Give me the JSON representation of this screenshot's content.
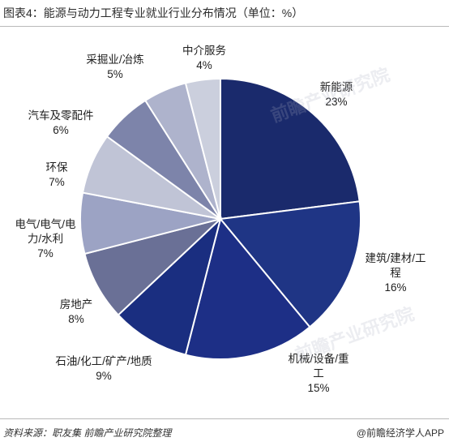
{
  "title": "图表4：能源与动力工程专业就业行业分布情况（单位：%）",
  "source": "资料来源：职友集 前瞻产业研究院整理",
  "brand": "@前瞻经济学人APP",
  "watermark": "前瞻产业研究院",
  "chart_data": {
    "type": "pie",
    "title": "图表4：能源与动力工程专业就业行业分布情况（单位：%）",
    "unit": "%",
    "categories": [
      "新能源",
      "建筑/建材/工程",
      "机械/设备/重工",
      "石油/化工/矿产/地质",
      "房地产",
      "电气/电气/电力/水利",
      "环保",
      "汽车及零配件",
      "采掘业/冶炼",
      "中介服务"
    ],
    "values": [
      23,
      16,
      15,
      9,
      8,
      7,
      7,
      6,
      5,
      4
    ],
    "value_labels": [
      "23%",
      "16%",
      "15%",
      "9%",
      "8%",
      "7%",
      "7%",
      "6%",
      "5%",
      "4%"
    ],
    "colors": [
      "#1a2a6c",
      "#1f3585",
      "#1d2f86",
      "#1a2e80",
      "#6a7096",
      "#9ca3c4",
      "#c0c4d6",
      "#7d84aa",
      "#aeb3cc",
      "#cbcfdd"
    ],
    "start_angle_deg": 0,
    "direction": "clockwise",
    "legend": "none",
    "labels_outside": true
  }
}
